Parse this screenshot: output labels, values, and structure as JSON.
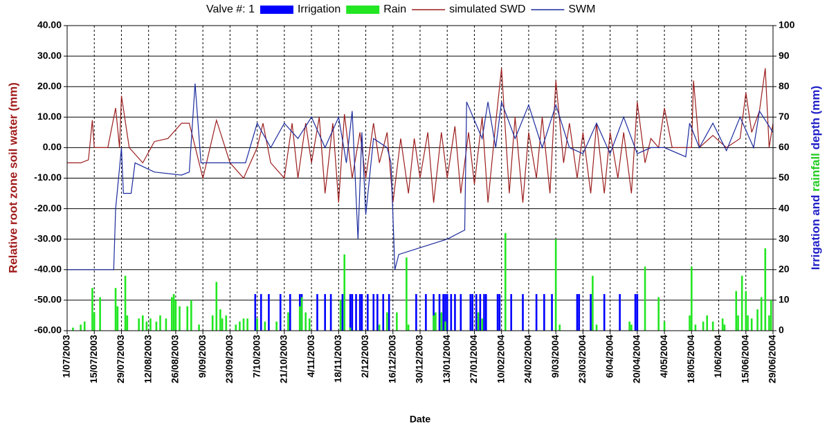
{
  "chart_data": {
    "type": "combo",
    "legend_title": "Valve #: 1",
    "x_label": "Date",
    "y_label": "Relative root zone soil water  (mm)",
    "y_label_color": "#a01c1c",
    "y2_label_parts": [
      {
        "text": "Irrigation and ",
        "color": "#2020c8"
      },
      {
        "text": "rainfall",
        "color": "#22cc22"
      },
      {
        "text": " depth (mm)",
        "color": "#2020c8"
      }
    ],
    "y2_tick_color": "#2020c8",
    "grid": true,
    "xlim": [
      "1/07/2003",
      "29/06/2004"
    ],
    "xticks": [
      "1/07/2003",
      "15/07/2003",
      "29/07/2003",
      "12/08/2003",
      "26/08/2003",
      "9/09/2003",
      "23/09/2003",
      "7/10/2003",
      "21/10/2003",
      "4/11/2003",
      "18/11/2003",
      "2/12/2003",
      "16/12/2003",
      "30/12/2003",
      "13/01/2004",
      "27/01/2004",
      "10/02/2004",
      "24/02/2004",
      "9/03/2004",
      "23/03/2004",
      "6/04/2004",
      "20/04/2004",
      "4/05/2004",
      "18/05/2004",
      "1/06/2004",
      "15/06/2004",
      "29/06/2004"
    ],
    "ylim": [
      -60,
      40
    ],
    "yticks": [
      {
        "value": -60,
        "label": "-60.00"
      },
      {
        "value": -50,
        "label": "-50.00"
      },
      {
        "value": -40,
        "label": "-40.00"
      },
      {
        "value": -30,
        "label": "-30.00"
      },
      {
        "value": -20,
        "label": "-20.00"
      },
      {
        "value": -10,
        "label": "-10.00"
      },
      {
        "value": 0,
        "label": "0.00"
      },
      {
        "value": 10,
        "label": "10.00"
      },
      {
        "value": 20,
        "label": "20.00"
      },
      {
        "value": 30,
        "label": "30.00"
      },
      {
        "value": 40,
        "label": "40.00"
      }
    ],
    "y2lim": [
      0,
      100
    ],
    "y2ticks": [
      0,
      10,
      20,
      30,
      40,
      50,
      60,
      70,
      80,
      90,
      100
    ],
    "series": [
      {
        "name": "Irrigation",
        "type": "bar",
        "axis": "y2",
        "color": "#0000ff",
        "x": [
          "6/10/2003",
          "9/10/2003",
          "13/10/2003",
          "19/10/2003",
          "24/10/2003",
          "29/10/2003",
          "30/10/2003",
          "7/11/2003",
          "11/11/2003",
          "14/11/2003",
          "20/11/2003",
          "24/11/2003",
          "25/11/2003",
          "27/11/2003",
          "29/11/2003",
          "30/11/2003",
          "3/12/2003",
          "6/12/2003",
          "8/12/2003",
          "11/12/2003",
          "14/12/2003",
          "28/12/2003",
          "2/01/2004",
          "6/01/2004",
          "9/01/2004",
          "11/01/2004",
          "12/01/2004",
          "13/01/2004",
          "15/01/2004",
          "17/01/2004",
          "20/01/2004",
          "25/01/2004",
          "26/01/2004",
          "28/01/2004",
          "30/01/2004",
          "1/02/2004",
          "2/02/2004",
          "8/02/2004",
          "9/02/2004",
          "15/02/2004",
          "21/02/2004",
          "28/02/2004",
          "3/03/2004",
          "7/03/2004",
          "20/03/2004",
          "21/03/2004",
          "27/03/2004",
          "3/04/2004",
          "11/04/2004",
          "19/04/2004",
          "20/04/2004"
        ],
        "values": [
          12,
          12,
          12,
          12,
          12,
          12,
          12,
          12,
          12,
          12,
          12,
          12,
          12,
          12,
          12,
          12,
          12,
          12,
          12,
          12,
          12,
          12,
          12,
          12,
          12,
          12,
          12,
          12,
          12,
          12,
          12,
          12,
          12,
          12,
          12,
          12,
          12,
          12,
          12,
          12,
          12,
          12,
          12,
          12,
          12,
          12,
          12,
          12,
          12,
          12,
          12
        ]
      },
      {
        "name": "Rain",
        "type": "bar",
        "axis": "y2",
        "color": "#22e622",
        "x": [
          "4/07/2003",
          "8/07/2003",
          "10/07/2003",
          "14/07/2003",
          "15/07/2003",
          "18/07/2003",
          "26/07/2003",
          "27/07/2003",
          "31/07/2003",
          "1/08/2003",
          "7/08/2003",
          "9/08/2003",
          "11/08/2003",
          "13/08/2003",
          "16/08/2003",
          "18/08/2003",
          "21/08/2003",
          "24/08/2003",
          "25/08/2003",
          "26/08/2003",
          "28/08/2003",
          "1/09/2003",
          "3/09/2003",
          "7/09/2003",
          "14/09/2003",
          "16/09/2003",
          "18/09/2003",
          "19/09/2003",
          "21/09/2003",
          "26/09/2003",
          "28/09/2003",
          "30/09/2003",
          "2/10/2003",
          "7/10/2003",
          "11/10/2003",
          "17/10/2003",
          "23/10/2003",
          "29/10/2003",
          "30/10/2003",
          "1/11/2003",
          "3/11/2003",
          "19/11/2003",
          "21/11/2003",
          "24/11/2003",
          "9/12/2003",
          "13/12/2003",
          "18/12/2003",
          "23/12/2003",
          "24/12/2003",
          "6/01/2004",
          "7/01/2004",
          "10/01/2004",
          "12/01/2004",
          "29/01/2004",
          "31/01/2004",
          "12/02/2004",
          "9/03/2004",
          "11/03/2004",
          "28/03/2004",
          "30/03/2004",
          "16/04/2004",
          "17/04/2004",
          "24/04/2004",
          "1/05/2004",
          "4/05/2004",
          "17/05/2004",
          "18/05/2004",
          "20/05/2004",
          "24/05/2004",
          "26/05/2004",
          "29/05/2004",
          "3/06/2004",
          "4/06/2004",
          "10/06/2004",
          "11/06/2004",
          "13/06/2004",
          "15/06/2004",
          "16/06/2004",
          "18/06/2004",
          "21/06/2004",
          "23/06/2004",
          "25/06/2004",
          "27/06/2004",
          "28/06/2004"
        ],
        "values": [
          1,
          2,
          3,
          14,
          6,
          11,
          14,
          8,
          18,
          5,
          4,
          5,
          3,
          4,
          3,
          5,
          4,
          11,
          12,
          10,
          8,
          8,
          10,
          2,
          5,
          16,
          7,
          4,
          5,
          2,
          3,
          4,
          4,
          4,
          3,
          3,
          6,
          8,
          11,
          6,
          4,
          10,
          25,
          1,
          2,
          6,
          6,
          24,
          2,
          5,
          6,
          6,
          3,
          6,
          4,
          32,
          30,
          2,
          18,
          2,
          3,
          2,
          21,
          11,
          3,
          5,
          21,
          2,
          3,
          5,
          3,
          4,
          2,
          13,
          5,
          18,
          13,
          5,
          4,
          7,
          11,
          27,
          5,
          10
        ]
      },
      {
        "name": "simulated SWD",
        "type": "line",
        "axis": "y",
        "color": "#9b1c1c",
        "x": [
          "1/07/2003",
          "8/07/2003",
          "12/07/2003",
          "14/07/2003",
          "15/07/2003",
          "22/07/2003",
          "26/07/2003",
          "28/07/2003",
          "29/07/2003",
          "2/08/2003",
          "9/08/2003",
          "15/08/2003",
          "22/08/2003",
          "29/08/2003",
          "2/09/2003",
          "9/09/2003",
          "16/09/2003",
          "23/09/2003",
          "30/09/2003",
          "7/10/2003",
          "10/10/2003",
          "14/10/2003",
          "21/10/2003",
          "25/10/2003",
          "28/10/2003",
          "1/11/2003",
          "4/11/2003",
          "8/11/2003",
          "11/11/2003",
          "15/11/2003",
          "18/11/2003",
          "21/11/2003",
          "25/11/2003",
          "29/11/2003",
          "2/12/2003",
          "6/12/2003",
          "9/12/2003",
          "13/12/2003",
          "16/12/2003",
          "20/12/2003",
          "24/12/2003",
          "27/12/2003",
          "30/12/2003",
          "3/01/2004",
          "6/01/2004",
          "10/01/2004",
          "13/01/2004",
          "17/01/2004",
          "20/01/2004",
          "24/01/2004",
          "27/01/2004",
          "31/01/2004",
          "3/02/2004",
          "7/02/2004",
          "10/02/2004",
          "14/02/2004",
          "17/02/2004",
          "21/02/2004",
          "24/02/2004",
          "28/02/2004",
          "2/03/2004",
          "6/03/2004",
          "9/03/2004",
          "13/03/2004",
          "16/03/2004",
          "20/03/2004",
          "23/03/2004",
          "27/03/2004",
          "30/03/2004",
          "3/04/2004",
          "6/04/2004",
          "10/04/2004",
          "13/04/2004",
          "17/04/2004",
          "20/04/2004",
          "24/04/2004",
          "27/04/2004",
          "1/05/2004",
          "4/05/2004",
          "8/05/2004",
          "18/05/2004",
          "19/05/2004",
          "22/05/2004",
          "29/05/2004",
          "5/06/2004",
          "12/06/2004",
          "15/06/2004",
          "18/06/2004",
          "22/06/2004",
          "25/06/2004",
          "27/06/2004",
          "29/06/2004"
        ],
        "values": [
          -5,
          -5,
          -4,
          9,
          0,
          0,
          13,
          0,
          17,
          0,
          -5,
          2,
          3,
          8,
          8,
          -10,
          9,
          -5,
          -10,
          0,
          8,
          -5,
          -10,
          8,
          -10,
          8,
          -5,
          10,
          -15,
          8,
          -18,
          11,
          -10,
          5,
          -10,
          8,
          -5,
          5,
          -18,
          3,
          -15,
          3,
          -10,
          5,
          -18,
          5,
          -10,
          7,
          -15,
          5,
          -12,
          10,
          -18,
          8,
          26,
          -15,
          10,
          -18,
          5,
          -10,
          10,
          -15,
          22,
          -5,
          8,
          -10,
          5,
          -15,
          8,
          -15,
          5,
          -10,
          5,
          -15,
          15,
          -5,
          3,
          0,
          13,
          0,
          0,
          22,
          0,
          4,
          0,
          3,
          18,
          5,
          12,
          26,
          0,
          8
        ]
      },
      {
        "name": "SWM",
        "type": "line",
        "axis": "y",
        "color": "#1a2a9c",
        "x": [
          "1/07/2003",
          "25/07/2003",
          "26/07/2003",
          "29/07/2003",
          "30/07/2003",
          "3/08/2003",
          "5/08/2003",
          "15/08/2003",
          "29/08/2003",
          "2/09/2003",
          "5/09/2003",
          "8/09/2003",
          "23/09/2003",
          "1/10/2003",
          "7/10/2003",
          "14/10/2003",
          "21/10/2003",
          "28/10/2003",
          "4/11/2003",
          "11/11/2003",
          "18/11/2003",
          "22/11/2003",
          "25/11/2003",
          "28/11/2003",
          "30/11/2003",
          "2/12/2003",
          "6/12/2003",
          "13/12/2003",
          "15/12/2003",
          "17/12/2003",
          "19/12/2003",
          "13/01/2004",
          "22/01/2004",
          "23/01/2004",
          "31/01/2004",
          "3/02/2004",
          "7/02/2004",
          "10/02/2004",
          "17/02/2004",
          "24/02/2004",
          "2/03/2004",
          "9/03/2004",
          "16/03/2004",
          "23/03/2004",
          "30/03/2004",
          "6/04/2004",
          "13/04/2004",
          "20/04/2004",
          "27/04/2004",
          "4/05/2004",
          "15/05/2004",
          "17/05/2004",
          "22/05/2004",
          "29/05/2004",
          "5/06/2004",
          "12/06/2004",
          "19/06/2004",
          "22/06/2004",
          "29/06/2004"
        ],
        "values": [
          -40,
          -40,
          -20,
          0,
          -15,
          -15,
          -5,
          -8,
          -9,
          -8,
          21,
          -5,
          -5,
          -5,
          8,
          0,
          8,
          3,
          10,
          0,
          10,
          -5,
          12,
          -30,
          5,
          -22,
          3,
          0,
          -5,
          -40,
          -35,
          -30,
          -27,
          15,
          3,
          15,
          0,
          15,
          3,
          14,
          0,
          14,
          0,
          -2,
          8,
          -2,
          10,
          -2,
          0,
          0,
          -3,
          8,
          0,
          8,
          -1,
          10,
          0,
          12,
          5
        ]
      }
    ]
  }
}
